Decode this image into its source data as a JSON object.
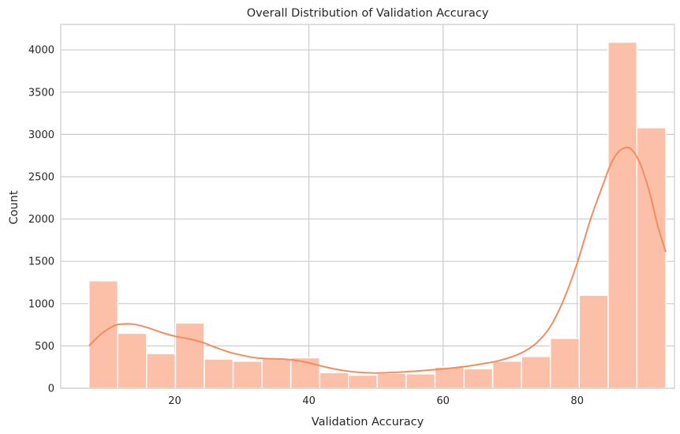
{
  "chart_data": {
    "type": "bar",
    "title": "Overall Distribution of Validation Accuracy",
    "xlabel": "Validation Accuracy",
    "ylabel": "Count",
    "xlim": [
      3,
      94.5
    ],
    "ylim": [
      0,
      4300
    ],
    "xticks": [
      20,
      40,
      60,
      80
    ],
    "yticks": [
      0,
      500,
      1000,
      1500,
      2000,
      2500,
      3000,
      3500,
      4000
    ],
    "grid": true,
    "colors": {
      "bar": "#fcc0a8",
      "kde": "#f28c61",
      "grid": "#cccccc"
    },
    "bins": {
      "start": 7.2,
      "width": 4.3,
      "counts": [
        1270,
        650,
        410,
        770,
        345,
        320,
        350,
        360,
        185,
        155,
        175,
        170,
        250,
        230,
        320,
        375,
        590,
        1100,
        4090,
        3080
      ]
    },
    "kde": {
      "x": [
        7.2,
        9,
        11,
        12.5,
        14,
        16,
        18,
        20,
        22,
        24,
        26,
        28,
        30,
        32,
        34,
        36,
        38,
        40,
        42,
        44,
        46,
        48,
        50,
        52,
        54,
        56,
        58,
        60,
        62,
        64,
        66,
        68,
        70,
        72,
        74,
        76,
        78,
        80,
        82,
        84,
        85,
        86,
        87,
        88,
        89,
        90,
        91,
        92,
        93.2
      ],
      "y": [
        500,
        640,
        740,
        760,
        755,
        715,
        660,
        615,
        585,
        545,
        485,
        430,
        390,
        360,
        350,
        345,
        330,
        300,
        260,
        225,
        200,
        185,
        180,
        185,
        192,
        202,
        215,
        228,
        245,
        265,
        290,
        320,
        365,
        430,
        540,
        730,
        1050,
        1480,
        2000,
        2440,
        2650,
        2780,
        2840,
        2830,
        2720,
        2520,
        2250,
        1920,
        1610
      ]
    }
  }
}
